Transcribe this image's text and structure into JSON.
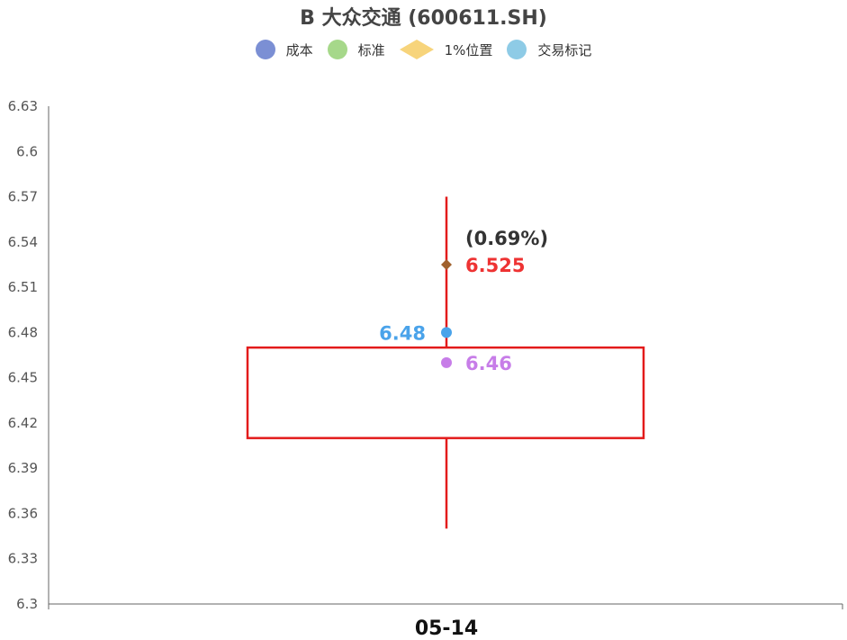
{
  "chart_data": {
    "type": "boxplot",
    "title": "B 大众交通 (600611.SH)",
    "legend": [
      {
        "name": "成本",
        "color": "#7b8fd4",
        "marker": "circle"
      },
      {
        "name": "标准",
        "color": "#a6d88a",
        "marker": "circle"
      },
      {
        "name": "1%位置",
        "color": "#f7d47b",
        "marker": "diamond"
      },
      {
        "name": "交易标记",
        "color": "#8ecbe6",
        "marker": "circle"
      }
    ],
    "legend_position": "top-center",
    "categories": [
      "05-14"
    ],
    "ylim": [
      6.3,
      6.63
    ],
    "yticks": [
      "6.3",
      "6.33",
      "6.36",
      "6.39",
      "6.42",
      "6.45",
      "6.48",
      "6.51",
      "6.54",
      "6.57",
      "6.6",
      "6.63"
    ],
    "grid": false,
    "box": {
      "low": 6.35,
      "q1": 6.41,
      "q3": 6.47,
      "high": 6.57,
      "color": "#e31b1b"
    },
    "points": [
      {
        "name": "成本",
        "value": 6.48,
        "label": "6.48",
        "color": "#4aa3ea",
        "label_side": "left"
      },
      {
        "name": "交易标记",
        "value": 6.46,
        "label": "6.46",
        "color": "#c77de8",
        "label_side": "right"
      },
      {
        "name": "1%位置",
        "value": 6.525,
        "label": "6.525",
        "pct_label": "(0.69%)",
        "color": "#a0612d",
        "label_color": "#ee3333",
        "label_side": "right"
      }
    ]
  }
}
